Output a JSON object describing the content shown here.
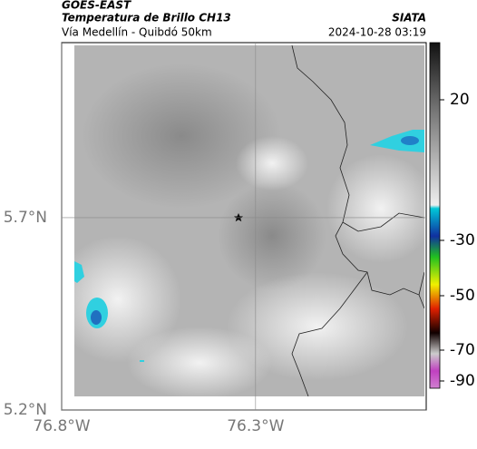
{
  "header": {
    "source": "GOES-EAST",
    "product": "Temperatura de Brillo CH13",
    "region": "Vía Medellín - Quibdó 50km",
    "agency": "SIATA",
    "datetime": "2024-10-28 03:19"
  },
  "map": {
    "xlim": [
      -76.8,
      -75.86
    ],
    "ylim": [
      5.2,
      6.155
    ],
    "xticks": [
      {
        "value": -76.8,
        "label": "76.8°W"
      },
      {
        "value": -76.3,
        "label": "76.3°W"
      }
    ],
    "yticks": [
      {
        "value": 5.7,
        "label": "5.7°N"
      },
      {
        "value": 5.2,
        "label": "5.2°N"
      }
    ],
    "colorbar_ticks": [
      20,
      -30,
      -50,
      -70,
      -90
    ]
  }
}
